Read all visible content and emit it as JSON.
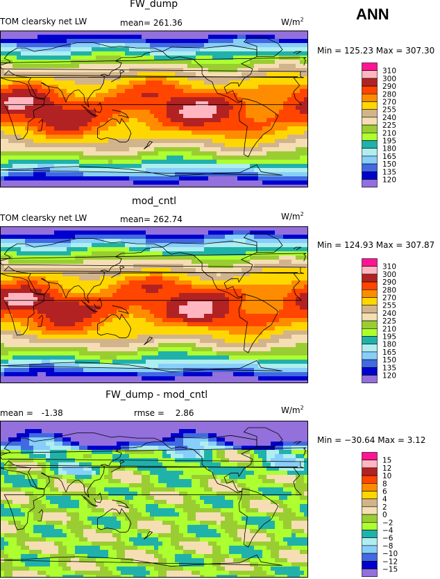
{
  "season": "ANN",
  "chart_data": [
    {
      "type": "heatmap",
      "title": "FW_dump",
      "variable": "TOM clearsky net LW",
      "mean_label": "mean=",
      "mean": "261.36",
      "units": "W/m",
      "units_exp": "2",
      "minmax": "Min = 125.23 Max = 307.30",
      "levels": [
        "310",
        "300",
        "290",
        "280",
        "270",
        "255",
        "240",
        "225",
        "210",
        "195",
        "180",
        "165",
        "150",
        "135",
        "120"
      ],
      "colors": [
        "#ff1493",
        "#ffb6c1",
        "#b22222",
        "#ff4500",
        "#ff8c00",
        "#ffd700",
        "#d2b48c",
        "#f5deb3",
        "#9acd32",
        "#adff2f",
        "#20b2aa",
        "#afeeee",
        "#87cefa",
        "#4169e1",
        "#0000cd",
        "#9370db"
      ],
      "field": "absolute"
    },
    {
      "type": "heatmap",
      "title": "mod_cntl",
      "variable": "TOM clearsky net LW",
      "mean_label": "mean=",
      "mean": "262.74",
      "units": "W/m",
      "units_exp": "2",
      "minmax": "Min = 124.93 Max = 307.87",
      "levels": [
        "310",
        "300",
        "290",
        "280",
        "270",
        "255",
        "240",
        "225",
        "210",
        "195",
        "180",
        "165",
        "150",
        "135",
        "120"
      ],
      "colors": [
        "#ff1493",
        "#ffb6c1",
        "#b22222",
        "#ff4500",
        "#ff8c00",
        "#ffd700",
        "#d2b48c",
        "#f5deb3",
        "#9acd32",
        "#adff2f",
        "#20b2aa",
        "#afeeee",
        "#87cefa",
        "#4169e1",
        "#0000cd",
        "#9370db"
      ],
      "field": "absolute"
    },
    {
      "type": "heatmap",
      "title": "FW_dump - mod_cntl",
      "mean_label": "mean =",
      "mean": "-1.38",
      "rmse_label": "rmse =",
      "rmse": "2.86",
      "units": "W/m",
      "units_exp": "2",
      "minmax": "Min = −30.64 Max =    3.12",
      "levels": [
        "15",
        "12",
        "10",
        "8",
        "6",
        "4",
        "2",
        "0",
        "−2",
        "−4",
        "−6",
        "−8",
        "−10",
        "−12",
        "−15"
      ],
      "colors": [
        "#ff1493",
        "#ffb6c1",
        "#b22222",
        "#ff4500",
        "#ff8c00",
        "#ffd700",
        "#d2b48c",
        "#f5deb3",
        "#9acd32",
        "#adff2f",
        "#20b2aa",
        "#afeeee",
        "#87cefa",
        "#4169e1",
        "#0000cd",
        "#9370db"
      ],
      "field": "difference"
    }
  ]
}
